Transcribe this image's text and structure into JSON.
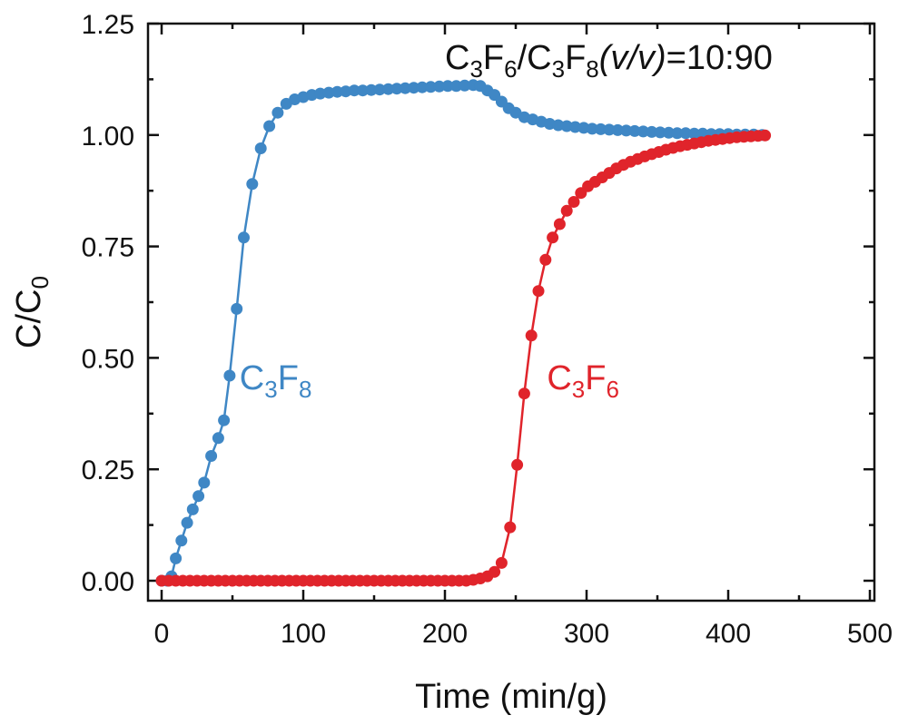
{
  "chart_data": {
    "type": "line",
    "xlabel": "Time (min/g)",
    "ylabel": {
      "main": "C/C",
      "sub": "0"
    },
    "xlim": [
      0,
      500
    ],
    "ylim": [
      0,
      1.25
    ],
    "xticks": [
      "0",
      "100",
      "200",
      "300",
      "400",
      "500"
    ],
    "yticks": [
      "0.00",
      "0.25",
      "0.50",
      "0.75",
      "1.00",
      "1.25"
    ],
    "annotation": {
      "parts": [
        "C",
        "3",
        "F",
        "6",
        "/C",
        "3",
        "F",
        "8",
        "(v/v)",
        "=10:90"
      ]
    },
    "series": [
      {
        "name": {
          "parts": [
            "C",
            "3",
            "F",
            "8"
          ]
        },
        "color": "#3f87c5",
        "points": [
          [
            0,
            0
          ],
          [
            4,
            0
          ],
          [
            7,
            0.01
          ],
          [
            10,
            0.05
          ],
          [
            14,
            0.09
          ],
          [
            18,
            0.13
          ],
          [
            22,
            0.16
          ],
          [
            26,
            0.19
          ],
          [
            30,
            0.22
          ],
          [
            35,
            0.28
          ],
          [
            40,
            0.32
          ],
          [
            44,
            0.36
          ],
          [
            48,
            0.46
          ],
          [
            53,
            0.61
          ],
          [
            58,
            0.77
          ],
          [
            64,
            0.89
          ],
          [
            70,
            0.97
          ],
          [
            76,
            1.02
          ],
          [
            82,
            1.05
          ],
          [
            88,
            1.07
          ],
          [
            94,
            1.08
          ],
          [
            100,
            1.085
          ],
          [
            106,
            1.09
          ],
          [
            112,
            1.093
          ],
          [
            118,
            1.095
          ],
          [
            124,
            1.097
          ],
          [
            130,
            1.098
          ],
          [
            136,
            1.1
          ],
          [
            142,
            1.1
          ],
          [
            148,
            1.101
          ],
          [
            154,
            1.102
          ],
          [
            160,
            1.103
          ],
          [
            166,
            1.104
          ],
          [
            172,
            1.105
          ],
          [
            178,
            1.106
          ],
          [
            184,
            1.107
          ],
          [
            190,
            1.108
          ],
          [
            196,
            1.109
          ],
          [
            202,
            1.11
          ],
          [
            208,
            1.11
          ],
          [
            214,
            1.111
          ],
          [
            220,
            1.112
          ],
          [
            225,
            1.11
          ],
          [
            230,
            1.1
          ],
          [
            235,
            1.09
          ],
          [
            240,
            1.075
          ],
          [
            245,
            1.06
          ],
          [
            250,
            1.05
          ],
          [
            256,
            1.04
          ],
          [
            262,
            1.035
          ],
          [
            268,
            1.03
          ],
          [
            274,
            1.025
          ],
          [
            280,
            1.022
          ],
          [
            286,
            1.02
          ],
          [
            292,
            1.018
          ],
          [
            298,
            1.016
          ],
          [
            304,
            1.014
          ],
          [
            310,
            1.013
          ],
          [
            316,
            1.012
          ],
          [
            322,
            1.011
          ],
          [
            328,
            1.01
          ],
          [
            334,
            1.009
          ],
          [
            340,
            1.008
          ],
          [
            346,
            1.007
          ],
          [
            352,
            1.006
          ],
          [
            358,
            1.005
          ],
          [
            364,
            1.004
          ],
          [
            370,
            1.004
          ],
          [
            376,
            1.003
          ],
          [
            382,
            1.003
          ],
          [
            388,
            1.002
          ],
          [
            394,
            1.002
          ],
          [
            400,
            1.002
          ],
          [
            406,
            1.001
          ],
          [
            412,
            1.001
          ],
          [
            418,
            1.001
          ],
          [
            424,
            1.0
          ]
        ]
      },
      {
        "name": {
          "parts": [
            "C",
            "3",
            "F",
            "6"
          ]
        },
        "color": "#e0242b",
        "points": [
          [
            0,
            0
          ],
          [
            5,
            0
          ],
          [
            10,
            0
          ],
          [
            15,
            0
          ],
          [
            20,
            0
          ],
          [
            25,
            0
          ],
          [
            30,
            0
          ],
          [
            35,
            0
          ],
          [
            40,
            0
          ],
          [
            45,
            0
          ],
          [
            50,
            0
          ],
          [
            55,
            0
          ],
          [
            60,
            0
          ],
          [
            65,
            0
          ],
          [
            70,
            0
          ],
          [
            75,
            0
          ],
          [
            80,
            0
          ],
          [
            85,
            0
          ],
          [
            90,
            0
          ],
          [
            95,
            0
          ],
          [
            100,
            0
          ],
          [
            105,
            0
          ],
          [
            110,
            0
          ],
          [
            115,
            0
          ],
          [
            120,
            0
          ],
          [
            125,
            0
          ],
          [
            130,
            0
          ],
          [
            135,
            0
          ],
          [
            140,
            0
          ],
          [
            145,
            0
          ],
          [
            150,
            0
          ],
          [
            155,
            0
          ],
          [
            160,
            0
          ],
          [
            165,
            0
          ],
          [
            170,
            0
          ],
          [
            175,
            0
          ],
          [
            180,
            0
          ],
          [
            185,
            0
          ],
          [
            190,
            0
          ],
          [
            195,
            0
          ],
          [
            200,
            0
          ],
          [
            205,
            0
          ],
          [
            210,
            0
          ],
          [
            215,
            0
          ],
          [
            220,
            0.002
          ],
          [
            225,
            0.005
          ],
          [
            230,
            0.01
          ],
          [
            235,
            0.02
          ],
          [
            240,
            0.04
          ],
          [
            246,
            0.12
          ],
          [
            251,
            0.26
          ],
          [
            256,
            0.42
          ],
          [
            261,
            0.55
          ],
          [
            266,
            0.65
          ],
          [
            271,
            0.72
          ],
          [
            276,
            0.77
          ],
          [
            281,
            0.8
          ],
          [
            286,
            0.83
          ],
          [
            291,
            0.85
          ],
          [
            296,
            0.87
          ],
          [
            301,
            0.885
          ],
          [
            306,
            0.895
          ],
          [
            311,
            0.905
          ],
          [
            316,
            0.915
          ],
          [
            321,
            0.925
          ],
          [
            326,
            0.933
          ],
          [
            331,
            0.94
          ],
          [
            336,
            0.946
          ],
          [
            341,
            0.952
          ],
          [
            346,
            0.957
          ],
          [
            351,
            0.962
          ],
          [
            356,
            0.967
          ],
          [
            361,
            0.971
          ],
          [
            366,
            0.975
          ],
          [
            371,
            0.978
          ],
          [
            376,
            0.981
          ],
          [
            381,
            0.984
          ],
          [
            386,
            0.987
          ],
          [
            391,
            0.989
          ],
          [
            396,
            0.991
          ],
          [
            401,
            0.993
          ],
          [
            406,
            0.995
          ],
          [
            411,
            0.996
          ],
          [
            416,
            0.997
          ],
          [
            421,
            0.998
          ],
          [
            426,
            0.999
          ]
        ]
      }
    ],
    "series_label_positions": [
      {
        "x": 55,
        "y": 0.43
      },
      {
        "x": 272,
        "y": 0.43
      }
    ]
  }
}
